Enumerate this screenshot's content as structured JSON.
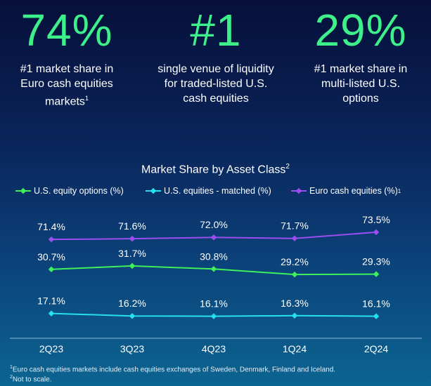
{
  "stats": [
    {
      "value": "74%",
      "lines": [
        "#1 market share in",
        "Euro cash equities",
        "markets"
      ],
      "sup": "1"
    },
    {
      "value": "#1",
      "lines": [
        "single venue of liquidity",
        "for traded-listed U.S.",
        "cash equities"
      ],
      "sup": ""
    },
    {
      "value": "29%",
      "lines": [
        "#1 market share in",
        "multi-listed U.S.",
        "options"
      ],
      "sup": ""
    }
  ],
  "colors": {
    "options": "#3ef05a",
    "equities": "#26e0f0",
    "euro": "#9b4ef0",
    "stat": "#3ef08a"
  },
  "chart_data": {
    "type": "line",
    "title": "Market Share by Asset Class",
    "title_sup": "2",
    "categories": [
      "2Q23",
      "3Q23",
      "4Q23",
      "1Q24",
      "2Q24"
    ],
    "series": [
      {
        "key": "options",
        "name": "U.S. equity options (%)",
        "sup": "",
        "values": [
          30.7,
          31.7,
          30.8,
          29.2,
          29.3
        ],
        "labels": [
          "30.7%",
          "31.7%",
          "30.8%",
          "29.2%",
          "29.3%"
        ]
      },
      {
        "key": "equities",
        "name": "U.S. equities - matched (%)",
        "sup": "",
        "values": [
          17.1,
          16.2,
          16.1,
          16.3,
          16.1
        ],
        "labels": [
          "17.1%",
          "16.2%",
          "16.1%",
          "16.3%",
          "16.1%"
        ]
      },
      {
        "key": "euro",
        "name": "Euro cash equities (%)",
        "sup": "1",
        "values": [
          71.4,
          71.6,
          72.0,
          71.7,
          73.5
        ],
        "labels": [
          "71.4%",
          "71.6%",
          "72.0%",
          "71.7%",
          "73.5%"
        ]
      }
    ],
    "legend_position": "top",
    "grid": false,
    "scale_note": "Not to scale"
  },
  "footnotes": [
    {
      "sup": "1",
      "text": "Euro cash equities markets include cash equities exchanges of Sweden, Denmark, Finland and Iceland."
    },
    {
      "sup": "2",
      "text": "Not to scale."
    }
  ]
}
